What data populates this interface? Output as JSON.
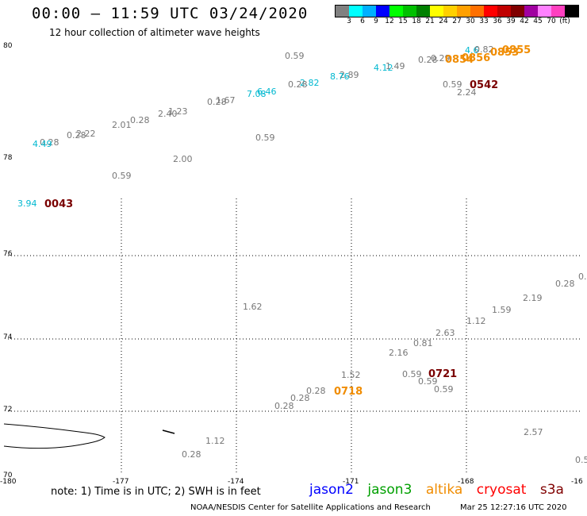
{
  "header": {
    "title": "00:00 – 11:59 UTC 03/24/2020",
    "subtitle": "12 hour collection of altimeter wave heights"
  },
  "scale": {
    "colors": [
      "#808080",
      "#00ffff",
      "#00b0ff",
      "#0000ff",
      "#00ff00",
      "#00c000",
      "#008000",
      "#ffff00",
      "#ffd000",
      "#ffa000",
      "#ff7000",
      "#ff0000",
      "#c00000",
      "#800000",
      "#a000a0",
      "#ff80ff",
      "#ff40c0",
      "#000000"
    ],
    "labels": [
      "3",
      "6",
      "9",
      "12",
      "15",
      "18",
      "21",
      "24",
      "27",
      "30",
      "33",
      "36",
      "39",
      "42",
      "45",
      "70",
      "(ft)"
    ]
  },
  "axes": {
    "lon_labels": [
      "-180",
      "-177",
      "-174",
      "-171",
      "-168",
      "-16"
    ],
    "lat_labels": [
      "80",
      "78",
      "76",
      "74",
      "72",
      "70"
    ]
  },
  "observations": [
    {
      "v": "0.59"
    },
    {
      "v": "0.28"
    },
    {
      "v": "1.49"
    },
    {
      "v": "2.89"
    },
    {
      "v": "8.76"
    },
    {
      "v": "4.12"
    },
    {
      "v": "2.82"
    },
    {
      "v": "0.28"
    },
    {
      "v": "6.46"
    },
    {
      "v": "7.08"
    },
    {
      "v": "1.67"
    },
    {
      "v": "0.28"
    },
    {
      "v": "1.23"
    },
    {
      "v": "2.40"
    },
    {
      "v": "0.28"
    },
    {
      "v": "2.01"
    },
    {
      "v": "2.22"
    },
    {
      "v": "0.28"
    },
    {
      "v": "0.28"
    },
    {
      "v": "4.49"
    },
    {
      "v": "0.59"
    },
    {
      "v": "2.00"
    },
    {
      "v": "0.59"
    },
    {
      "v": "0.59"
    },
    {
      "v": "2.24"
    },
    {
      "v": "0.29"
    },
    {
      "v": "4.6"
    },
    {
      "v": "0.82"
    },
    {
      "v": "3.94"
    },
    {
      "v": "0.28"
    },
    {
      "v": "2.19"
    },
    {
      "v": "1.59"
    },
    {
      "v": "1.12"
    },
    {
      "v": "2.63"
    },
    {
      "v": "0.81"
    },
    {
      "v": "2.16"
    },
    {
      "v": "1.62"
    },
    {
      "v": "1.52"
    },
    {
      "v": "0.59"
    },
    {
      "v": "0.59"
    },
    {
      "v": "0.59"
    },
    {
      "v": "0.28"
    },
    {
      "v": "0.28"
    },
    {
      "v": "0.28"
    },
    {
      "v": "1.12"
    },
    {
      "v": "0.28"
    },
    {
      "v": "2.57"
    },
    {
      "v": "0.5"
    },
    {
      "v": "0."
    }
  ],
  "pass_times": {
    "t0542": "0542",
    "t0043": "0043",
    "t0721": "0721",
    "t0718": "0718",
    "t0855": "0855",
    "t0856": "0856",
    "t0853": "0853",
    "t0854": "0854"
  },
  "footer": {
    "note": "note:  1) Time is in UTC;  2) SWH is in feet",
    "satellites": [
      {
        "name": "jason2",
        "color": "#0000ff"
      },
      {
        "name": "jason3",
        "color": "#00a000"
      },
      {
        "name": "altika",
        "color": "#f08c00"
      },
      {
        "name": "cryosat",
        "color": "#ff0000"
      },
      {
        "name": "s3a",
        "color": "#800000"
      }
    ],
    "credit": "NOAA/NESDIS Center for Satellite Applications and Research",
    "timestamp": "Mar 25 12:27:16 UTC 2020"
  }
}
